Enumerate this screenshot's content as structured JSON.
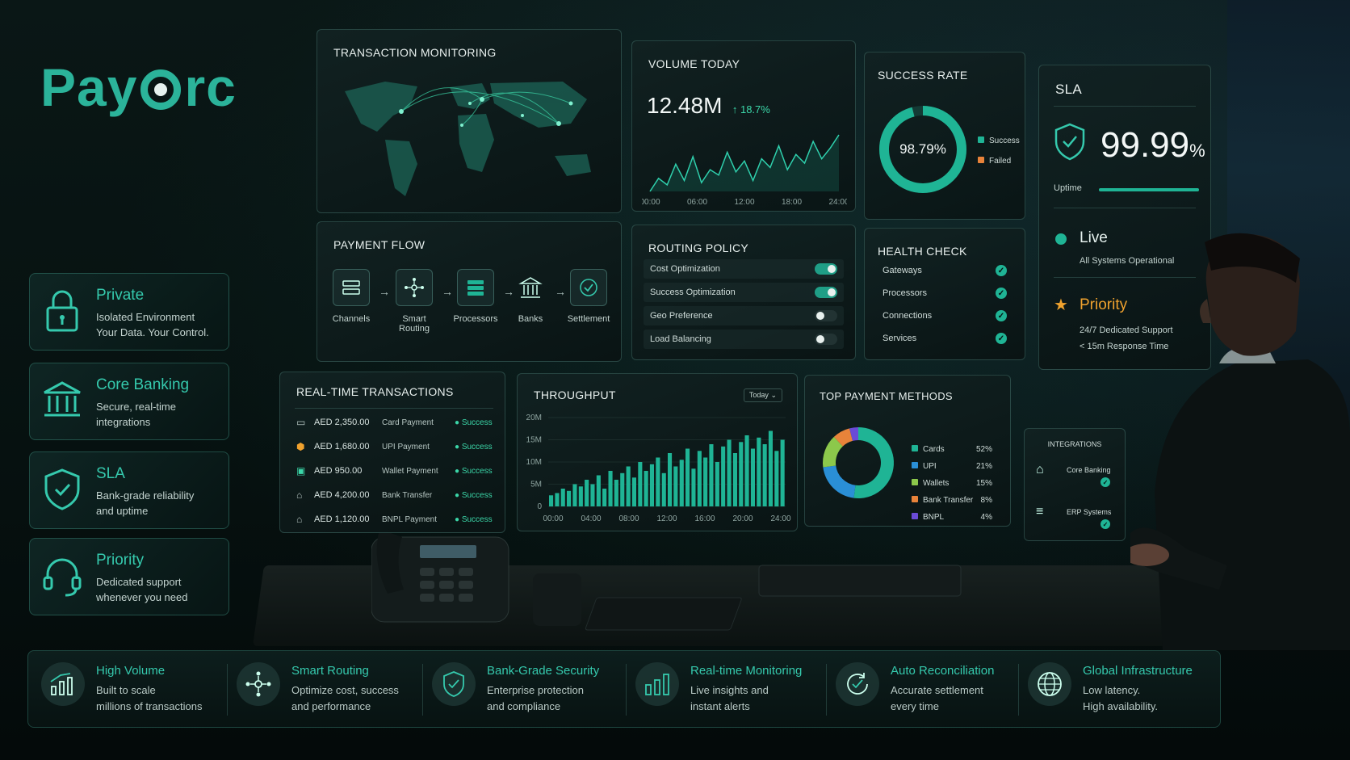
{
  "brand": {
    "name_prefix": "Pay",
    "name_suffix": "rc"
  },
  "side_cards": [
    {
      "title": "Private",
      "line1": "Isolated Environment",
      "line2": "Your Data. Your Control.",
      "icon": "lock-icon"
    },
    {
      "title": "Core Banking",
      "line1": "Secure, real-time",
      "line2": "integrations",
      "icon": "bank-icon"
    },
    {
      "title": "SLA",
      "line1": "Bank-grade reliability",
      "line2": "and uptime",
      "icon": "shield-icon"
    },
    {
      "title": "Priority",
      "line1": "Dedicated support",
      "line2": "whenever you need",
      "icon": "headset-icon"
    }
  ],
  "transaction_monitoring": {
    "title": "TRANSACTION MONITORING"
  },
  "volume_today": {
    "title": "VOLUME TODAY",
    "value": "12.48M",
    "change": "↑ 18.7%",
    "ticks": [
      "00:00",
      "06:00",
      "12:00",
      "18:00",
      "24:00"
    ],
    "series": [
      30,
      42,
      36,
      55,
      40,
      62,
      38,
      50,
      45,
      66,
      48,
      58,
      40,
      60,
      52,
      72,
      50,
      64,
      56,
      76,
      60,
      70,
      82
    ]
  },
  "success_rate": {
    "title": "SUCCESS RATE",
    "value": "98.79%",
    "success_fraction": 0.9879,
    "legend": [
      "Success",
      "Failed"
    ]
  },
  "sla": {
    "title": "SLA",
    "value": "99.99",
    "unit": "%",
    "uptime_label": "Uptime",
    "uptime_fraction": 0.9999,
    "live": "Live",
    "live_sub": "All Systems Operational",
    "priority": "Priority",
    "priority_l1": "24/7 Dedicated Support",
    "priority_l2": "< 15m Response Time"
  },
  "payment_flow": {
    "title": "PAYMENT FLOW",
    "steps": [
      "Channels",
      "Smart Routing",
      "Processors",
      "Banks",
      "Settlement"
    ]
  },
  "routing_policy": {
    "title": "ROUTING POLICY",
    "items": [
      {
        "label": "Cost Optimization",
        "on": true
      },
      {
        "label": "Success Optimization",
        "on": true
      },
      {
        "label": "Geo Preference",
        "on": false
      },
      {
        "label": "Load Balancing",
        "on": false
      }
    ]
  },
  "health_check": {
    "title": "HEALTH CHECK",
    "items": [
      "Gateways",
      "Processors",
      "Connections",
      "Services"
    ]
  },
  "realtime_tx": {
    "title": "REAL-TIME TRANSACTIONS",
    "rows": [
      {
        "amount": "AED 2,350.00",
        "method": "Card Payment",
        "status": "Success"
      },
      {
        "amount": "AED 1,680.00",
        "method": "UPI Payment",
        "status": "Success"
      },
      {
        "amount": "AED 950.00",
        "method": "Wallet Payment",
        "status": "Success"
      },
      {
        "amount": "AED 4,200.00",
        "method": "Bank Transfer",
        "status": "Success"
      },
      {
        "amount": "AED 1,120.00",
        "method": "BNPL Payment",
        "status": "Success"
      }
    ]
  },
  "chart_data": {
    "type": "bar",
    "title": "THROUGHPUT",
    "filter": "Today",
    "yticks": [
      "20M",
      "15M",
      "10M",
      "5M",
      "0"
    ],
    "xticks": [
      "00:00",
      "04:00",
      "08:00",
      "12:00",
      "16:00",
      "20:00",
      "24:00"
    ],
    "ylim": [
      0,
      20
    ],
    "values": [
      2.5,
      3,
      4,
      3.5,
      5,
      4.5,
      6,
      5,
      7,
      4,
      8,
      6,
      7.5,
      9,
      6.5,
      10,
      8,
      9.5,
      11,
      7.5,
      12,
      9,
      10.5,
      13,
      8.5,
      12.5,
      11,
      14,
      10,
      13.5,
      15,
      12,
      14.5,
      16,
      13,
      15.5,
      14,
      17,
      12.5,
      15
    ]
  },
  "top_methods": {
    "title": "TOP PAYMENT METHODS",
    "items": [
      {
        "name": "Cards",
        "pct": "52%",
        "value": 52,
        "color": "#1fb495"
      },
      {
        "name": "UPI",
        "pct": "21%",
        "value": 21,
        "color": "#2a8fd6"
      },
      {
        "name": "Wallets",
        "pct": "15%",
        "value": 15,
        "color": "#8cc84b"
      },
      {
        "name": "Bank Transfer",
        "pct": "8%",
        "value": 8,
        "color": "#e8833a"
      },
      {
        "name": "BNPL",
        "pct": "4%",
        "value": 4,
        "color": "#6a4bd6"
      }
    ]
  },
  "integrations": {
    "title": "INTEGRATIONS",
    "items": [
      "Core Banking",
      "ERP Systems"
    ]
  },
  "features": [
    {
      "title": "High Volume",
      "l1": "Built to scale",
      "l2": "millions of transactions",
      "icon": "bar-growth-icon"
    },
    {
      "title": "Smart Routing",
      "l1": "Optimize cost, success",
      "l2": "and performance",
      "icon": "routing-icon"
    },
    {
      "title": "Bank-Grade Security",
      "l1": "Enterprise protection",
      "l2": "and compliance",
      "icon": "shield-check-icon"
    },
    {
      "title": "Real-time Monitoring",
      "l1": "Live insights and",
      "l2": "instant alerts",
      "icon": "bars-icon"
    },
    {
      "title": "Auto Reconciliation",
      "l1": "Accurate settlement",
      "l2": "every time",
      "icon": "check-cycle-icon"
    },
    {
      "title": "Global Infrastructure",
      "l1": "Low latency.",
      "l2": "High availability.",
      "icon": "globe-icon"
    }
  ],
  "colors": {
    "accent": "#2bb39a",
    "accent_bright": "#35c9ad",
    "warn": "#e8833a",
    "star": "#f0a22e"
  }
}
